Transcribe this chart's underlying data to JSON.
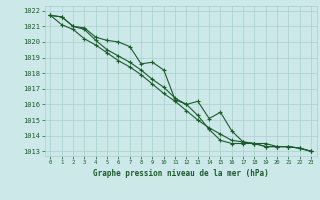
{
  "title": "Graphe pression niveau de la mer (hPa)",
  "background_color": "#cde8e8",
  "grid_color": "#aacfcf",
  "line_color": "#1a5c2a",
  "xmin": 0,
  "xmax": 23,
  "ymin": 1013,
  "ymax": 1022,
  "xticks": [
    0,
    1,
    2,
    3,
    4,
    5,
    6,
    7,
    8,
    9,
    10,
    11,
    12,
    13,
    14,
    15,
    16,
    17,
    18,
    19,
    20,
    21,
    22,
    23
  ],
  "yticks": [
    1013,
    1014,
    1015,
    1016,
    1017,
    1018,
    1019,
    1020,
    1021,
    1022
  ],
  "line1": [
    1021.7,
    1021.6,
    1021.0,
    1020.8,
    1020.1,
    1019.5,
    1019.1,
    1018.7,
    1018.2,
    1017.6,
    1017.1,
    1016.4,
    1016.0,
    1015.3,
    1014.4,
    1013.7,
    1013.5,
    1013.5,
    1013.5,
    1013.3,
    1013.3,
    1013.3,
    1013.2,
    1013.0
  ],
  "line2": [
    1021.7,
    1021.6,
    1021.0,
    1020.9,
    1020.3,
    1020.1,
    1020.0,
    1019.7,
    1018.6,
    1018.7,
    1018.2,
    1016.3,
    1016.0,
    1016.2,
    1015.1,
    1015.5,
    1014.3,
    1013.6,
    1013.5,
    1013.5,
    1013.3,
    1013.3,
    1013.2,
    1013.0
  ],
  "line3": [
    1021.7,
    1021.1,
    1020.8,
    1020.2,
    1019.8,
    1019.3,
    1018.8,
    1018.4,
    1017.9,
    1017.3,
    1016.7,
    1016.2,
    1015.6,
    1015.0,
    1014.5,
    1014.1,
    1013.7,
    1013.6,
    1013.5,
    1013.3,
    1013.3,
    1013.3,
    1013.2,
    1013.0
  ]
}
